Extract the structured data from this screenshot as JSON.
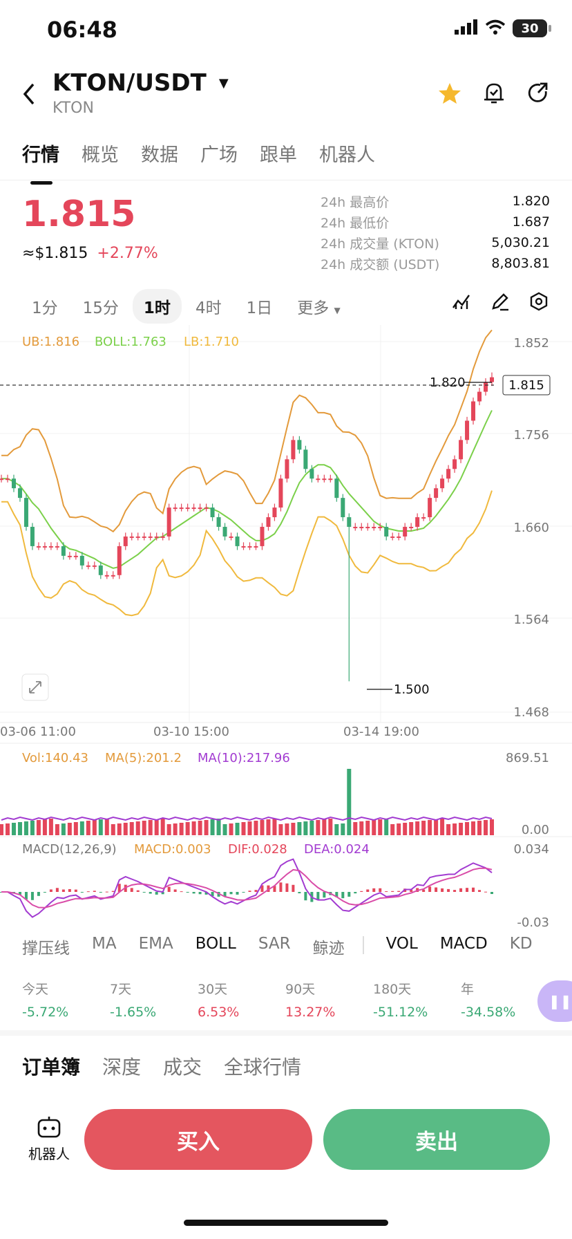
{
  "status_bar": {
    "time": "06:48",
    "battery": "30"
  },
  "header": {
    "pair": "KTON/USDT",
    "subtitle": "KTON"
  },
  "tabs": [
    "行情",
    "概览",
    "数据",
    "广场",
    "跟单",
    "机器人"
  ],
  "ticker": {
    "price": "1.815",
    "usd_price": "≈$1.815",
    "change": "+2.77%",
    "stats": [
      {
        "label": "24h 最高价",
        "value": "1.820"
      },
      {
        "label": "24h 最低价",
        "value": "1.687"
      },
      {
        "label": "24h 成交量 (KTON)",
        "value": "5,030.21"
      },
      {
        "label": "24h 成交额 (USDT)",
        "value": "8,803.81"
      }
    ]
  },
  "intervals": [
    "1分",
    "15分",
    "1时",
    "4时",
    "1日",
    "更多"
  ],
  "selected_interval": "1时",
  "colors": {
    "up": "#e4465a",
    "down": "#3aa874",
    "ub": "#e39a3b",
    "boll": "#7bd04a",
    "lb": "#f0b93d",
    "ma10": "#a23bd1",
    "accent_star": "#f5b82e"
  },
  "chart_data": {
    "type": "candlestick",
    "boll_legend": {
      "ub": "UB:1.816",
      "boll": "BOLL:1.763",
      "lb": "LB:1.710"
    },
    "y_ticks": [
      "1.852",
      "1.756",
      "1.660",
      "1.564",
      "1.468"
    ],
    "ylim": [
      1.468,
      1.852
    ],
    "x_ticks": [
      "03-06 11:00",
      "03-10 15:00",
      "03-14 19:00"
    ],
    "current_price_tag": "1.815",
    "high_marker": "1.820",
    "low_marker": "1.500",
    "close_path": [
      1.71,
      1.71,
      1.7,
      1.69,
      1.66,
      1.64,
      1.64,
      1.64,
      1.64,
      1.64,
      1.63,
      1.63,
      1.63,
      1.62,
      1.62,
      1.62,
      1.61,
      1.61,
      1.61,
      1.64,
      1.65,
      1.65,
      1.65,
      1.65,
      1.65,
      1.65,
      1.65,
      1.68,
      1.68,
      1.68,
      1.68,
      1.68,
      1.68,
      1.68,
      1.67,
      1.66,
      1.65,
      1.65,
      1.64,
      1.64,
      1.64,
      1.64,
      1.66,
      1.67,
      1.68,
      1.71,
      1.73,
      1.75,
      1.74,
      1.72,
      1.71,
      1.71,
      1.71,
      1.71,
      1.69,
      1.67,
      1.66,
      1.66,
      1.66,
      1.66,
      1.66,
      1.66,
      1.65,
      1.65,
      1.65,
      1.66,
      1.66,
      1.67,
      1.67,
      1.69,
      1.7,
      1.71,
      1.72,
      1.73,
      1.75,
      1.77,
      1.79,
      1.8,
      1.81,
      1.815
    ],
    "vol_legend": {
      "vol": "Vol:140.43",
      "ma5": "MA(5):201.2",
      "ma10": "MA(10):217.96"
    },
    "vol_ticks": [
      "869.51",
      "0.00"
    ],
    "macd_legend": {
      "label": "MACD(12,26,9)",
      "macd": "MACD:0.003",
      "dif": "DIF:0.028",
      "dea": "DEA:0.024"
    },
    "macd_ticks": [
      "0.034",
      "-0.03"
    ]
  },
  "indicators": [
    "撑压线",
    "MA",
    "EMA",
    "BOLL",
    "SAR",
    "鲸迹",
    "VOL",
    "MACD",
    "KD"
  ],
  "active_indicators": [
    "BOLL",
    "VOL",
    "MACD"
  ],
  "performance": [
    {
      "label": "今天",
      "value": "-5.72%",
      "dir": "dn"
    },
    {
      "label": "7天",
      "value": "-1.65%",
      "dir": "dn"
    },
    {
      "label": "30天",
      "value": "6.53%",
      "dir": "up"
    },
    {
      "label": "90天",
      "value": "13.27%",
      "dir": "up"
    },
    {
      "label": "180天",
      "value": "-51.12%",
      "dir": "dn"
    },
    {
      "label": "年",
      "value": "-34.58%",
      "dir": "dn"
    }
  ],
  "book_tabs": [
    "订单簿",
    "深度",
    "成交",
    "全球行情"
  ],
  "bottom": {
    "robot_label": "机器人",
    "buy": "买入",
    "sell": "卖出"
  }
}
